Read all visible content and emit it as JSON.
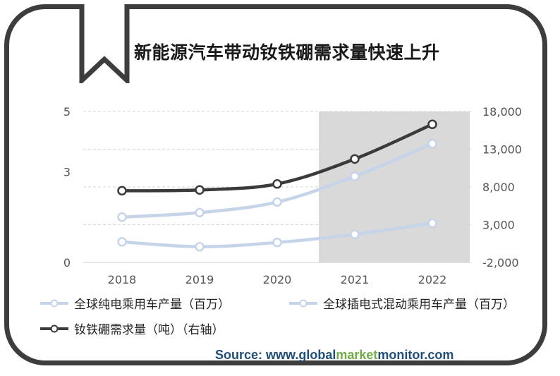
{
  "title": "新能源汽车带动钕铁硼需求量快速上升",
  "chart_data": {
    "type": "line",
    "categories": [
      "2018",
      "2019",
      "2020",
      "2021",
      "2022"
    ],
    "y_left": {
      "ticks": [
        "0",
        "3",
        "5"
      ],
      "ylim": [
        0,
        5
      ]
    },
    "y_right": {
      "ticks": [
        "-2,000",
        "3,000",
        "8,000",
        "13,000",
        "18,000"
      ],
      "ylim": [
        -2000,
        18000
      ]
    },
    "highlight_band": {
      "from": "2021",
      "to": "2022",
      "color": "#d9d9d9"
    },
    "grid": "dashed horizontal",
    "legend_position": "bottom",
    "series": [
      {
        "name": "全球纯电乘用车产量（百万）",
        "axis": "left",
        "values": [
          1.5,
          1.65,
          2.0,
          2.85,
          3.93
        ],
        "color": "#c6d4ea"
      },
      {
        "name": "全球插电式混动乘用车产量（百万）",
        "axis": "left",
        "values": [
          0.68,
          0.52,
          0.66,
          0.93,
          1.3
        ],
        "color": "#c6d4ea"
      },
      {
        "name": "钕铁硼需求量（吨）（右轴）",
        "axis": "right",
        "values": [
          7500,
          7600,
          8400,
          11700,
          16300
        ],
        "color": "#3a3a3a"
      }
    ]
  },
  "source": {
    "prefix": "Source: www.",
    "part1": "global",
    "part2": "market",
    "part3": "monitor",
    "suffix": ".com"
  }
}
